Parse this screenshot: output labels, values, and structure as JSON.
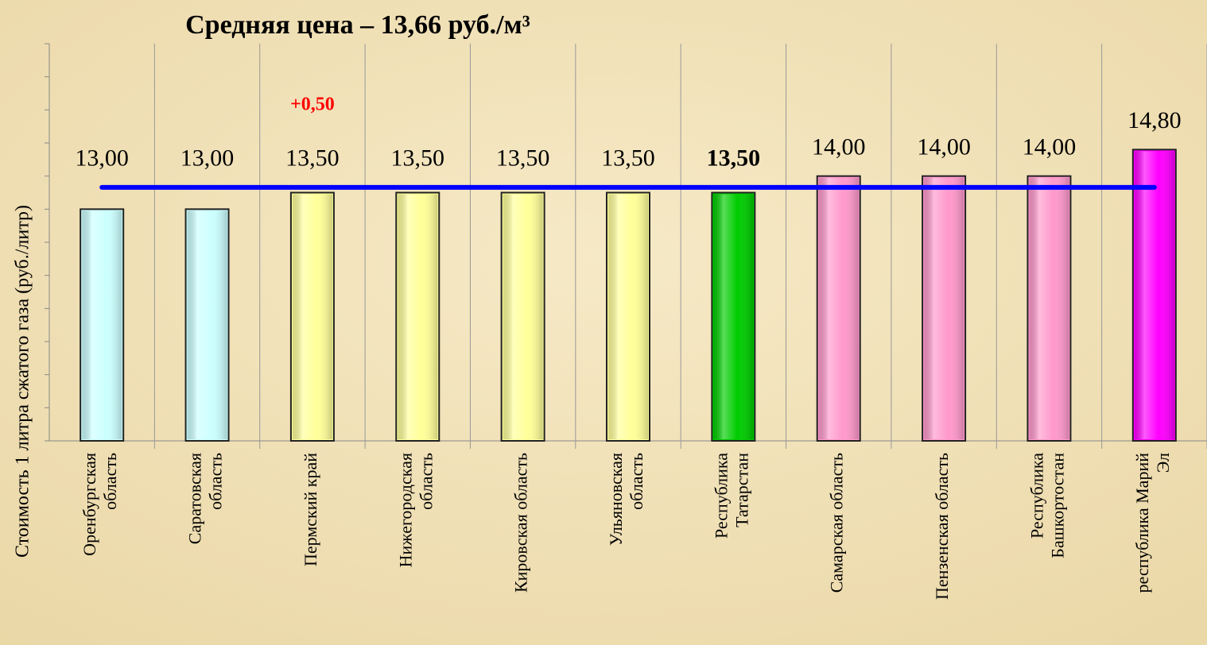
{
  "chart_data": {
    "type": "bar",
    "title": "Средняя цена – 13,66 руб./м³",
    "y_axis_label": "Стоимость 1  литра сжатого газа  (руб./литр)",
    "categories": [
      "Оренбургская\nобласть",
      "Саратовская\nобласть",
      "Пермский край",
      "Нижегородская\nобласть",
      "Кировская область",
      "Ульяновская\nобласть",
      "Республика\nТатарстан",
      "Самарская область",
      "Пензенская область",
      "Республика\nБашкортостан",
      "республика Марий\nЭл"
    ],
    "values": [
      13.0,
      13.0,
      13.5,
      13.5,
      13.5,
      13.5,
      13.5,
      14.0,
      14.0,
      14.0,
      14.8
    ],
    "value_labels": [
      "13,00",
      "13,00",
      "13,50",
      "13,50",
      "13,50",
      "13,50",
      "13,50",
      "14,00",
      "14,00",
      "14,00",
      "14,80"
    ],
    "colors": [
      "#ccffff",
      "#ccffff",
      "#ffff99",
      "#ffff99",
      "#ffff99",
      "#ffff99",
      "#00cc00",
      "#ff99cc",
      "#ff99cc",
      "#ff99cc",
      "#ff00ff"
    ],
    "bold_value_label_index": 6,
    "average": 13.66,
    "average_color": "#0000ff",
    "annotation": {
      "text": "+0,50",
      "category_index": 2,
      "color": "#ff0000"
    },
    "ylim": [
      6,
      18
    ],
    "yticks": [
      6,
      7,
      8,
      9,
      10,
      11,
      12,
      13,
      14,
      15,
      16,
      17,
      18
    ]
  }
}
